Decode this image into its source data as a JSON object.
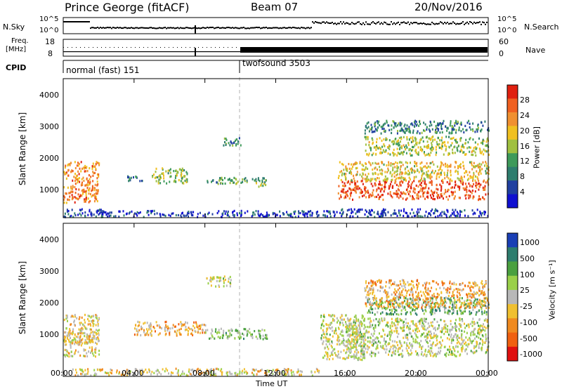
{
  "header": {
    "radar": "Prince George (fitACF)",
    "beam": "Beam 07",
    "date": "20/Nov/2016"
  },
  "strip_labels": {
    "nsky": "N.Sky",
    "nsearch": "N.Search",
    "freq_line1": "Freq.",
    "freq_line2": "[MHz]",
    "nave": "Nave",
    "cpid": "CPID"
  },
  "strip_ticks": {
    "nsky_top": "10^5",
    "nsky_bot": "10^0",
    "nsearch_top": "10^5",
    "nsearch_bot": "10^0",
    "freq_top": "18",
    "freq_bot": "8",
    "nave_top": "60",
    "nave_bot": "0"
  },
  "cpid": [
    {
      "label": "normal (fast) 151",
      "start_ut": "00:00"
    },
    {
      "label": "twofsound 3503",
      "start_ut": "10:00"
    }
  ],
  "x_axis": {
    "label": "Time UT",
    "ticks": [
      "00:00",
      "04:00",
      "08:00",
      "12:00",
      "16:00",
      "20:00",
      "00:00"
    ]
  },
  "chart_data": [
    {
      "type": "heatmap",
      "name": "power-panel",
      "ylabel": "Slant Range [km]",
      "yticks": [
        "1000",
        "2000",
        "3000",
        "4000"
      ],
      "ylim": [
        200,
        4600
      ],
      "xlim_hours": [
        0,
        24
      ],
      "colorbar_label": "Power [dB]",
      "colorbar_ticks": [
        "4",
        "8",
        "12",
        "16",
        "20",
        "24",
        "28"
      ],
      "colorbar_range": [
        0,
        32
      ],
      "regions": [
        {
          "t": [
            0.0,
            2.0
          ],
          "r": [
            700,
            2000
          ],
          "level": 0.75
        },
        {
          "t": [
            0.0,
            2.2
          ],
          "r": [
            250,
            500
          ],
          "level": 0.15
        },
        {
          "t": [
            2.0,
            15.5
          ],
          "r": [
            250,
            450
          ],
          "level": 0.12
        },
        {
          "t": [
            3.5,
            4.5
          ],
          "r": [
            1350,
            1550
          ],
          "level": 0.3
        },
        {
          "t": [
            5.0,
            7.0
          ],
          "r": [
            1300,
            1800
          ],
          "level": 0.45
        },
        {
          "t": [
            8.0,
            9.0
          ],
          "r": [
            1300,
            1500
          ],
          "level": 0.35
        },
        {
          "t": [
            8.8,
            10.5
          ],
          "r": [
            1300,
            1500
          ],
          "level": 0.4
        },
        {
          "t": [
            9.0,
            10.0
          ],
          "r": [
            2500,
            2800
          ],
          "level": 0.35
        },
        {
          "t": [
            10.5,
            11.5
          ],
          "r": [
            1200,
            1500
          ],
          "level": 0.4
        },
        {
          "t": [
            15.5,
            24.0
          ],
          "r": [
            800,
            1400
          ],
          "level": 0.85
        },
        {
          "t": [
            15.5,
            24.0
          ],
          "r": [
            1400,
            2000
          ],
          "level": 0.6
        },
        {
          "t": [
            17.0,
            24.0
          ],
          "r": [
            2200,
            2800
          ],
          "level": 0.5
        },
        {
          "t": [
            17.0,
            24.0
          ],
          "r": [
            2900,
            3300
          ],
          "level": 0.3
        },
        {
          "t": [
            15.5,
            24.0
          ],
          "r": [
            250,
            500
          ],
          "level": 0.12
        }
      ]
    },
    {
      "type": "heatmap",
      "name": "velocity-panel",
      "ylabel": "Slant Range [km]",
      "yticks": [
        "1000",
        "2000",
        "3000",
        "4000"
      ],
      "ylim": [
        200,
        4600
      ],
      "xlim_hours": [
        0,
        24
      ],
      "colorbar_label": "Velocity [m s⁻¹]",
      "colorbar_ticks": [
        "1000",
        "500",
        "100",
        "25",
        "-25",
        "-100",
        "-500",
        "-1000"
      ],
      "regions": [
        {
          "t": [
            0.0,
            2.0
          ],
          "r": [
            800,
            2000
          ],
          "level": 0.55
        },
        {
          "t": [
            0.0,
            2.0
          ],
          "r": [
            1200,
            1500
          ],
          "level": 0.6
        },
        {
          "t": [
            0.5,
            14.5
          ],
          "r": [
            250,
            450
          ],
          "level": 0.55
        },
        {
          "t": [
            4.0,
            8.0
          ],
          "r": [
            1400,
            1800
          ],
          "level": 0.65
        },
        {
          "t": [
            8.0,
            11.5
          ],
          "r": [
            1300,
            1600
          ],
          "level": 0.38
        },
        {
          "t": [
            8.0,
            9.5
          ],
          "r": [
            2800,
            3100
          ],
          "level": 0.47
        },
        {
          "t": [
            14.5,
            17.0
          ],
          "r": [
            700,
            2000
          ],
          "level": 0.47
        },
        {
          "t": [
            16.0,
            24.0
          ],
          "r": [
            800,
            1900
          ],
          "level": 0.47
        },
        {
          "t": [
            17.0,
            24.0
          ],
          "r": [
            2000,
            2500
          ],
          "level": 0.3
        },
        {
          "t": [
            17.0,
            24.0
          ],
          "r": [
            2200,
            3000
          ],
          "level": 0.65
        }
      ]
    }
  ],
  "colors": {
    "power_scale": [
      "#1010d0",
      "#2040a0",
      "#2e7d6e",
      "#3e9a5a",
      "#a0c040",
      "#f0c020",
      "#f09030",
      "#f06020",
      "#e02010"
    ],
    "velocity_scale": [
      "#1a3fb5",
      "#2e7d6e",
      "#4aa040",
      "#9ad04a",
      "#b8b8b8",
      "#f0c030",
      "#f08a20",
      "#f06010",
      "#e01010"
    ]
  }
}
